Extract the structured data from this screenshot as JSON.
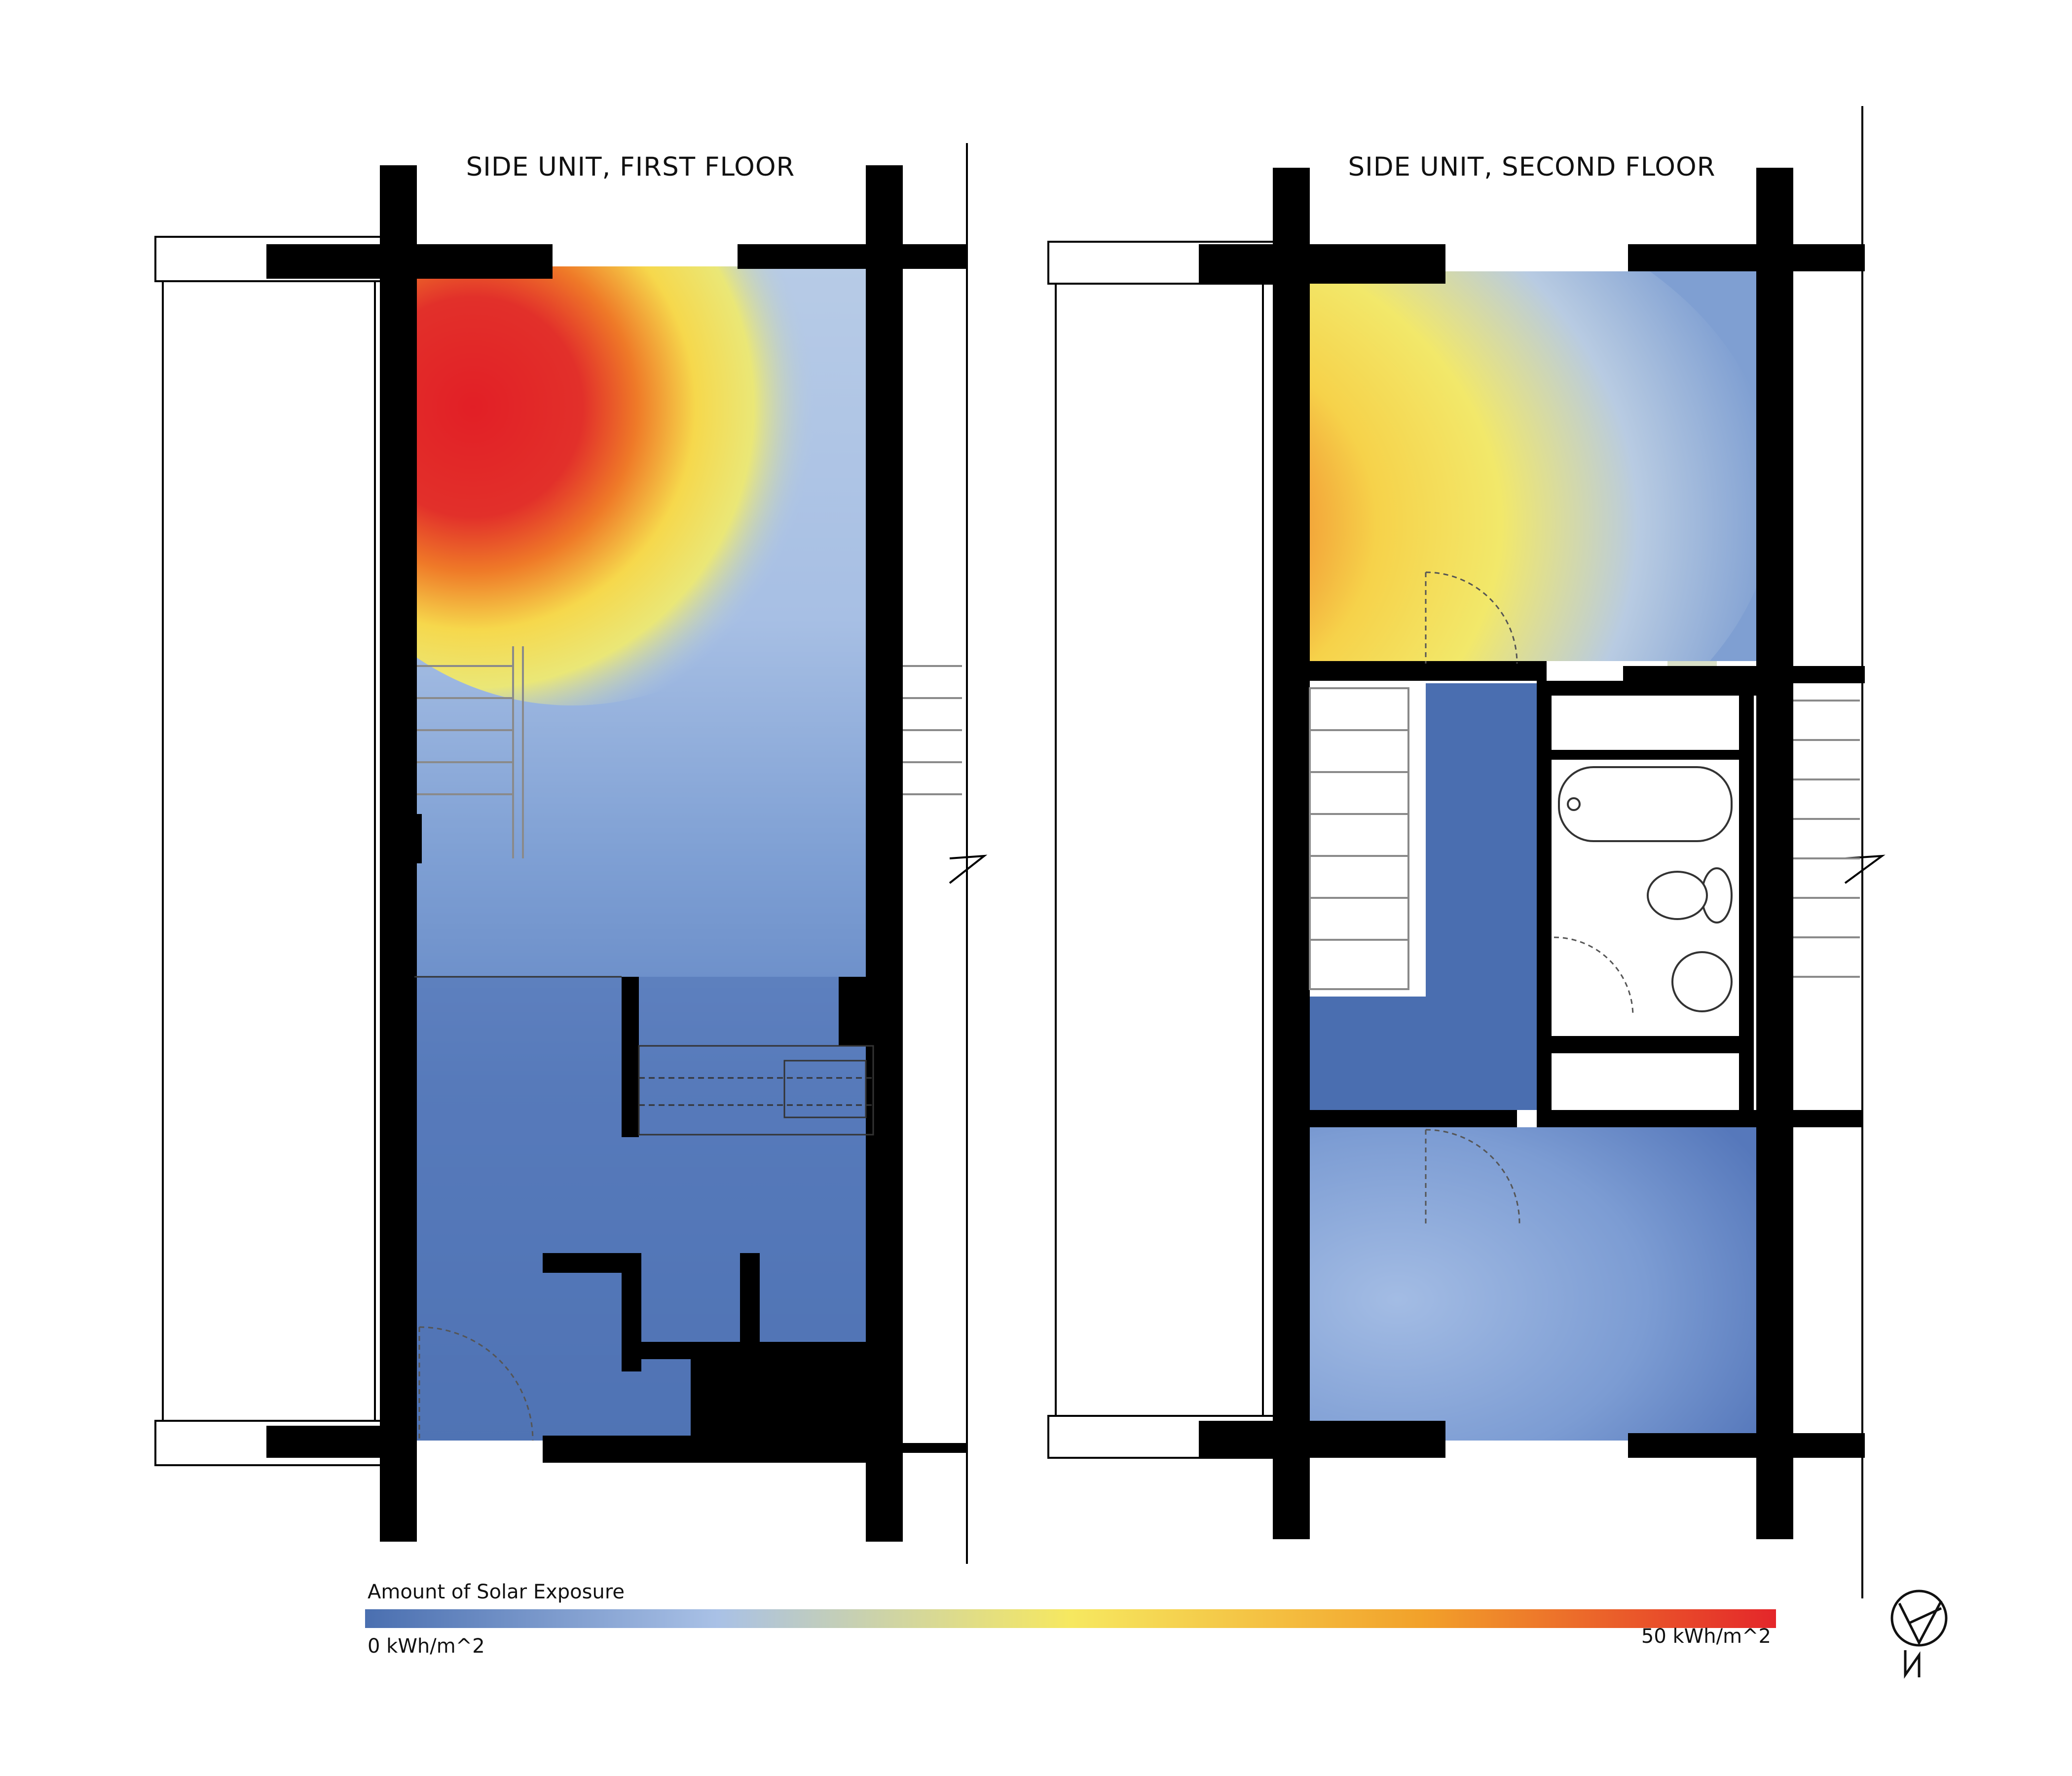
{
  "plans": [
    {
      "title": "SIDE UNIT, FIRST FLOOR"
    },
    {
      "title": "SIDE UNIT, SECOND FLOOR"
    }
  ],
  "legend": {
    "title": "Amount of Solar Exposure",
    "min_label": "0 kWh/m^2",
    "max_label": "50 kWh/m^2",
    "min_value": 0,
    "max_value": 50,
    "unit": "kWh/m^2",
    "gradient_colors": [
      "#4a6fb0",
      "#a9c1e6",
      "#f6e860",
      "#f2a12a",
      "#e4262a"
    ]
  },
  "north_arrow": {
    "symbol": "north-arrow",
    "letter": "N"
  },
  "colors": {
    "wall": "#000000",
    "low": "#4a6fb0",
    "high": "#e4262a"
  }
}
